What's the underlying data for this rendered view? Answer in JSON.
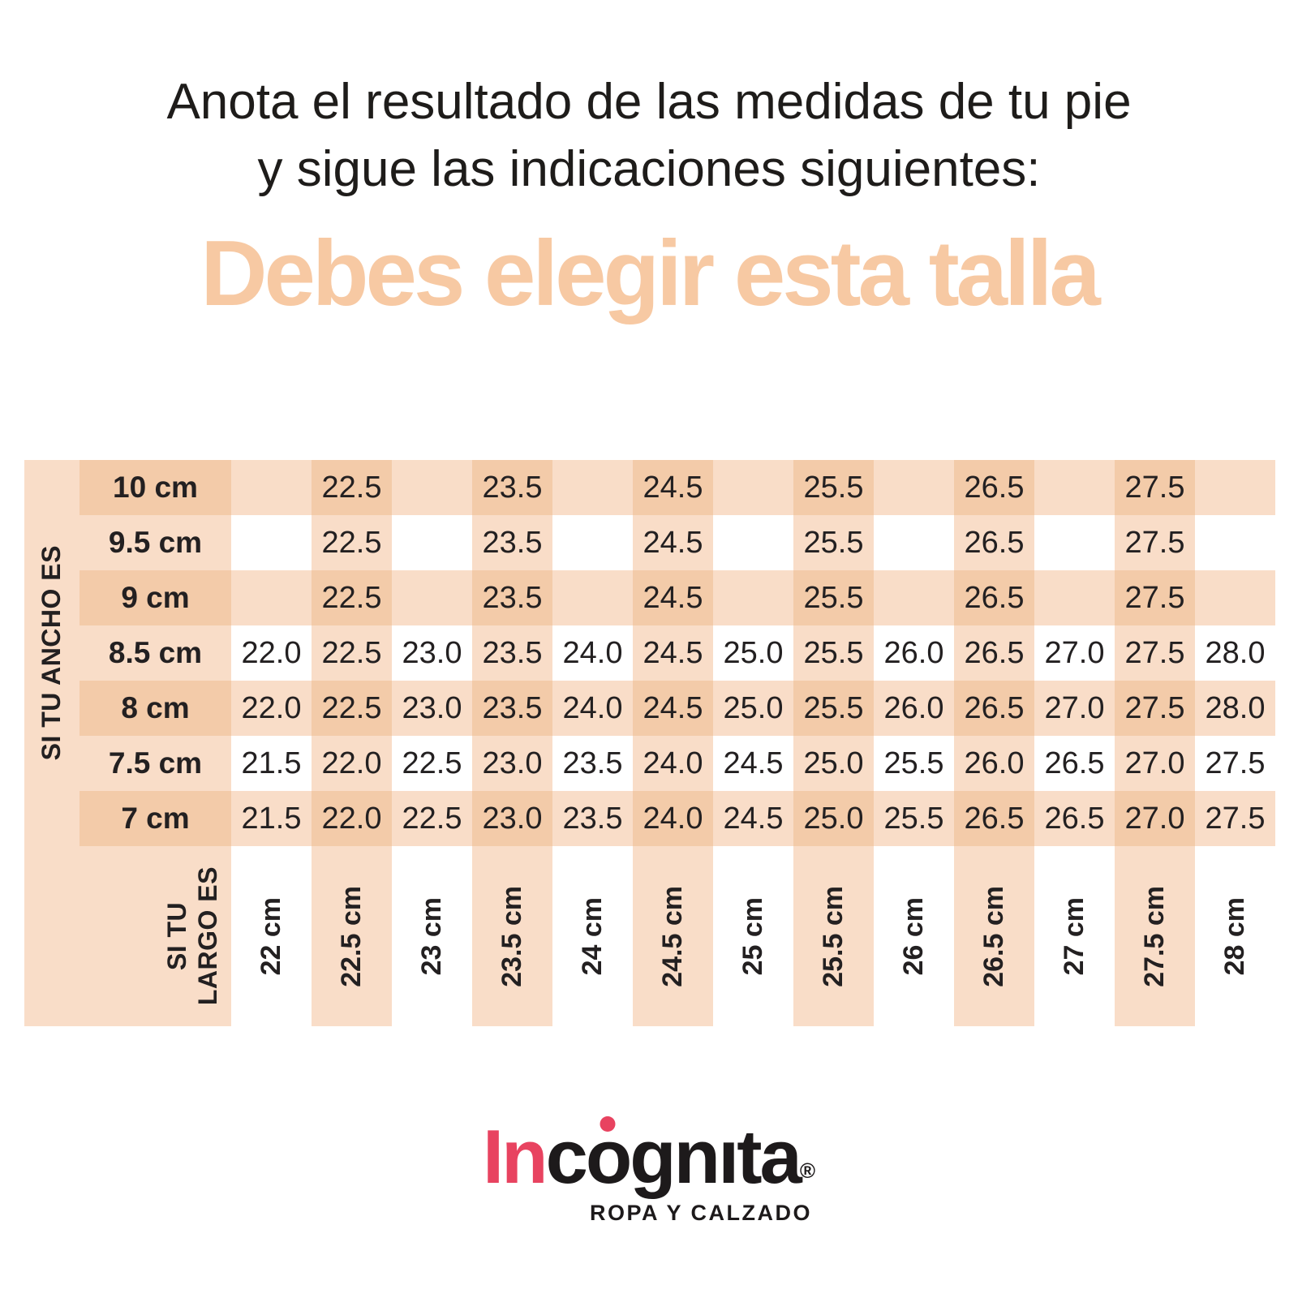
{
  "title": {
    "line1": "Anota el resultado de las medidas de tu pie",
    "line2": "y sigue las indicaciones siguientes:"
  },
  "heading": {
    "text": "Debes elegir esta talla"
  },
  "colors": {
    "peach_light": "#f9ddc8",
    "peach_dark": "#f3cba9",
    "heading_text": "#f7c9a3",
    "logo_red": "#e84360",
    "text_dark": "#232021"
  },
  "table": {
    "row_axis_label": "SI TU ANCHO ES",
    "col_axis_label": "SI TU\nLARGO ES",
    "row_labels": [
      "10 cm",
      "9.5 cm",
      "9 cm",
      "8.5 cm",
      "8 cm",
      "7.5 cm",
      "7 cm"
    ],
    "col_labels": [
      "22 cm",
      "22.5 cm",
      "23 cm",
      "23.5 cm",
      "24 cm",
      "24.5 cm",
      "25 cm",
      "25.5 cm",
      "26 cm",
      "26.5 cm",
      "27 cm",
      "27.5 cm",
      "28 cm"
    ],
    "peach_row_indices": [
      0,
      2,
      4,
      6
    ],
    "peach_col_indices": [
      1,
      3,
      5,
      7,
      9,
      11
    ],
    "values": [
      [
        "",
        "22.5",
        "",
        "23.5",
        "",
        "24.5",
        "",
        "25.5",
        "",
        "26.5",
        "",
        "27.5",
        ""
      ],
      [
        "",
        "22.5",
        "",
        "23.5",
        "",
        "24.5",
        "",
        "25.5",
        "",
        "26.5",
        "",
        "27.5",
        ""
      ],
      [
        "",
        "22.5",
        "",
        "23.5",
        "",
        "24.5",
        "",
        "25.5",
        "",
        "26.5",
        "",
        "27.5",
        ""
      ],
      [
        "22.0",
        "22.5",
        "23.0",
        "23.5",
        "24.0",
        "24.5",
        "25.0",
        "25.5",
        "26.0",
        "26.5",
        "27.0",
        "27.5",
        "28.0"
      ],
      [
        "22.0",
        "22.5",
        "23.0",
        "23.5",
        "24.0",
        "24.5",
        "25.0",
        "25.5",
        "26.0",
        "26.5",
        "27.0",
        "27.5",
        "28.0"
      ],
      [
        "21.5",
        "22.0",
        "22.5",
        "23.0",
        "23.5",
        "24.0",
        "24.5",
        "25.0",
        "25.5",
        "26.0",
        "26.5",
        "27.0",
        "27.5"
      ],
      [
        "21.5",
        "22.0",
        "22.5",
        "23.0",
        "23.5",
        "24.0",
        "24.5",
        "25.0",
        "25.5",
        "26.5",
        "26.5",
        "27.0",
        "27.5"
      ]
    ]
  },
  "logo": {
    "brand_prefix": "In",
    "brand_pre_o": "c",
    "brand_o": "o",
    "brand_suffix": "gnıta",
    "registered": "®",
    "tagline": "ROPA Y CALZADO"
  },
  "chart_data": {
    "type": "table",
    "title": "Debes elegir esta talla",
    "xlabel": "SI TU LARGO ES (cm)",
    "ylabel": "SI TU ANCHO ES (cm)",
    "columns_largo_cm": [
      22,
      22.5,
      23,
      23.5,
      24,
      24.5,
      25,
      25.5,
      26,
      26.5,
      27,
      27.5,
      28
    ],
    "rows_ancho_cm": [
      10,
      9.5,
      9,
      8.5,
      8,
      7.5,
      7
    ],
    "talla_matrix": [
      [
        null,
        22.5,
        null,
        23.5,
        null,
        24.5,
        null,
        25.5,
        null,
        26.5,
        null,
        27.5,
        null
      ],
      [
        null,
        22.5,
        null,
        23.5,
        null,
        24.5,
        null,
        25.5,
        null,
        26.5,
        null,
        27.5,
        null
      ],
      [
        null,
        22.5,
        null,
        23.5,
        null,
        24.5,
        null,
        25.5,
        null,
        26.5,
        null,
        27.5,
        null
      ],
      [
        22.0,
        22.5,
        23.0,
        23.5,
        24.0,
        24.5,
        25.0,
        25.5,
        26.0,
        26.5,
        27.0,
        27.5,
        28.0
      ],
      [
        22.0,
        22.5,
        23.0,
        23.5,
        24.0,
        24.5,
        25.0,
        25.5,
        26.0,
        26.5,
        27.0,
        27.5,
        28.0
      ],
      [
        21.5,
        22.0,
        22.5,
        23.0,
        23.5,
        24.0,
        24.5,
        25.0,
        25.5,
        26.0,
        26.5,
        27.0,
        27.5
      ],
      [
        21.5,
        22.0,
        22.5,
        23.0,
        23.5,
        24.0,
        24.5,
        25.0,
        25.5,
        26.5,
        26.5,
        27.0,
        27.5
      ]
    ],
    "legend": "checkerboard shading: alternating peach stripes on rows and columns",
    "grid": false
  }
}
